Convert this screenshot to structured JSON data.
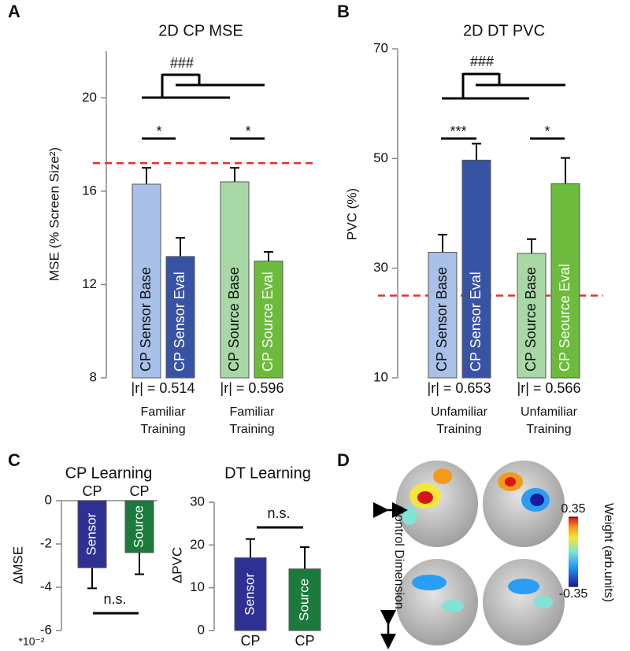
{
  "chart_data": [
    {
      "type": "bar",
      "panel_label": "A",
      "title": "2D CP MSE",
      "ylabel": "MSE (% Screen Size²)",
      "ylim": [
        8,
        22
      ],
      "yticks": [
        8,
        12,
        16,
        20
      ],
      "categories": [
        "CP Sensor Base",
        "CP Sensor Eval",
        "CP Source Base",
        "CP Source Eval"
      ],
      "values": [
        16.3,
        13.2,
        16.4,
        13.0
      ],
      "errors": [
        0.7,
        0.8,
        0.6,
        0.4
      ],
      "colors": [
        "#a9c0e8",
        "#3953a4",
        "#a8d8a6",
        "#6cbb3c"
      ],
      "reference_line": {
        "value": 17.2,
        "color": "#e8312a"
      },
      "groups": [
        {
          "r": "|r| = 0.514",
          "training": [
            "Familiar",
            "Training"
          ]
        },
        {
          "r": "|r| = 0.596",
          "training": [
            "Familiar",
            "Training"
          ]
        }
      ],
      "significance": [
        "*",
        "*",
        "###"
      ]
    },
    {
      "type": "bar",
      "panel_label": "B",
      "title": "2D DT PVC",
      "ylabel": "PVC (%)",
      "ylim": [
        10,
        70
      ],
      "yticks": [
        10,
        30,
        50,
        70
      ],
      "categories": [
        "CP Sensor Base",
        "CP Sensor Eval",
        "CP Source Base",
        "CP Seource Eval"
      ],
      "values": [
        32.9,
        49.7,
        32.7,
        45.4
      ],
      "errors": [
        3.2,
        3.0,
        2.6,
        4.7
      ],
      "colors": [
        "#a9c0e8",
        "#3953a4",
        "#a8d8a6",
        "#6cbb3c"
      ],
      "reference_line": {
        "value": 25,
        "color": "#e8312a"
      },
      "groups": [
        {
          "r": "|r| = 0.653",
          "training": [
            "Unfamiliar",
            "Training"
          ]
        },
        {
          "r": "|r| = 0.566",
          "training": [
            "Unfamiliar",
            "Training"
          ]
        }
      ],
      "significance": [
        "***",
        "*",
        "###"
      ]
    },
    {
      "type": "bar",
      "panel_label": "C",
      "title": "CP Learning",
      "ylabel": "ΔMSE",
      "scale_label": "*10⁻²",
      "ylim": [
        -6,
        0
      ],
      "yticks": [
        0,
        -2,
        -4,
        -6
      ],
      "categories": [
        "Sensor",
        "Source"
      ],
      "group_labels": [
        "CP",
        "CP"
      ],
      "values": [
        -3.1,
        -2.4
      ],
      "errors": [
        0.95,
        1.0
      ],
      "colors": [
        "#2e3192",
        "#1b7a3c"
      ],
      "significance": [
        "n.s."
      ]
    },
    {
      "type": "bar",
      "title": "DT Learning",
      "ylabel": "ΔPVC",
      "ylim": [
        0,
        30
      ],
      "yticks": [
        0,
        10,
        20,
        30
      ],
      "categories": [
        "Sensor",
        "Source"
      ],
      "group_labels": [
        "CP",
        "CP"
      ],
      "values": [
        17,
        14.4
      ],
      "errors": [
        4.4,
        5.1
      ],
      "colors": [
        "#2e3192",
        "#1b7a3c"
      ],
      "significance": [
        "n.s."
      ]
    },
    {
      "type": "brain-map",
      "panel_label": "D",
      "colorbar_label": "Weight (arb.units)",
      "clim": [
        -0.35,
        0.35
      ],
      "cticks": [
        0.35,
        -0.35
      ],
      "annotation": "Control Dimension"
    }
  ]
}
